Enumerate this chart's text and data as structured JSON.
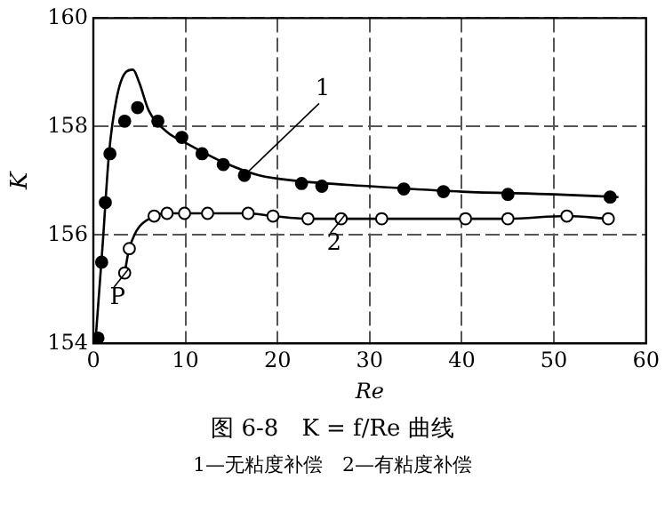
{
  "chart_data": {
    "type": "scatter",
    "title": "图 6-8　K = f/Re 曲线",
    "xlabel": "Re",
    "ylabel": "K",
    "annotations": [
      {
        "text": "1",
        "x": 16.4,
        "y": 157.1
      },
      {
        "text": "2",
        "x": 26.9,
        "y": 156.3
      },
      {
        "text": "P",
        "x": 3.4,
        "y": 155.3
      },
      "1—无粘度补偿　2—有粘度补偿"
    ],
    "xlim": [
      0,
      60
    ],
    "xticks": [
      0,
      10,
      20,
      30,
      40,
      50,
      60
    ],
    "ylim": [
      154,
      160
    ],
    "yticks": [
      154,
      156,
      158,
      160
    ],
    "grid": true,
    "legend": false,
    "series": [
      {
        "type": "scatter",
        "color": "#000000",
        "marker": "circle",
        "x": [
          0.5,
          0.9,
          1.3,
          1.8,
          3.4,
          4.8,
          7.0,
          9.6,
          11.8,
          14.1,
          16.4,
          22.6,
          24.8,
          33.7,
          38.0,
          45.0,
          56.1
        ],
        "values": [
          154.1,
          155.5,
          156.6,
          157.5,
          158.1,
          158.35,
          158.1,
          157.8,
          157.5,
          157.3,
          157.1,
          156.95,
          156.9,
          156.85,
          156.8,
          156.75,
          156.7
        ]
      },
      {
        "type": "line",
        "color": "#000000",
        "marker": "none",
        "x": [
          0.3,
          1,
          1.7,
          2.5,
          3.5,
          4.3,
          5,
          6,
          8,
          10,
          14,
          18,
          22,
          30,
          40,
          50,
          57
        ],
        "values": [
          154.2,
          155.8,
          157.5,
          158.5,
          159.0,
          159.05,
          158.8,
          158.3,
          157.9,
          157.7,
          157.35,
          157.1,
          157.0,
          156.9,
          156.8,
          156.75,
          156.7
        ]
      },
      {
        "type": "line",
        "color": "#000000",
        "marker": "circle",
        "x": [
          3.4,
          3.9,
          6.6,
          8.0,
          9.9,
          12.4,
          16.8,
          19.5,
          23.3,
          26.9,
          31.3,
          40.4,
          45.0,
          51.4,
          55.9
        ],
        "values": [
          155.3,
          155.75,
          156.35,
          156.4,
          156.4,
          156.4,
          156.4,
          156.35,
          156.3,
          156.3,
          156.3,
          156.3,
          156.3,
          156.35,
          156.3
        ]
      }
    ]
  }
}
